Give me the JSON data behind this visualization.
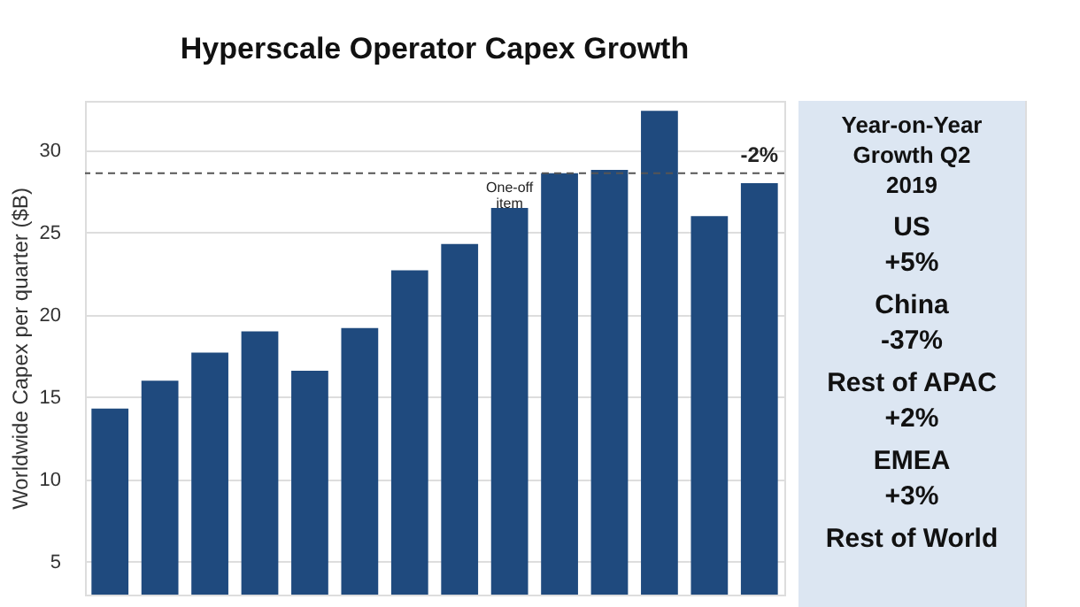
{
  "chart_data": [
    {
      "type": "bar",
      "title": "Hyperscale Operator Capex Growth",
      "ylabel": "Worldwide Capex per quarter ($B)",
      "categories": [
        null,
        null,
        null,
        null,
        null,
        null,
        null,
        null,
        null,
        null,
        null,
        null,
        null,
        null
      ],
      "values": [
        14.3,
        16.0,
        17.7,
        19.0,
        16.6,
        19.2,
        22.7,
        24.3,
        26.5,
        28.6,
        28.8,
        32.4,
        26.0,
        28.0
      ],
      "color": "#1f4a7e",
      "ylim": [
        3,
        33
      ],
      "yticks": [
        5,
        10,
        15,
        20,
        25,
        30
      ],
      "grid": "y",
      "tick_labels": "y",
      "ref_lines": [
        {
          "axis": "y",
          "value": 28.6,
          "line_style": "dashed",
          "color": "#555555"
        }
      ],
      "annotations": [
        {
          "text": "One-off item",
          "y": 26.5
        },
        {
          "text": "-2%",
          "y": 28.0
        }
      ]
    },
    {
      "type": "other",
      "title": "Year-on-Year Growth Q2 2019",
      "annotations": [
        "US",
        "+5%",
        "China",
        "-37%",
        "Rest of APAC",
        "+2%",
        "EMEA",
        "+3%",
        "Rest of World"
      ]
    }
  ]
}
